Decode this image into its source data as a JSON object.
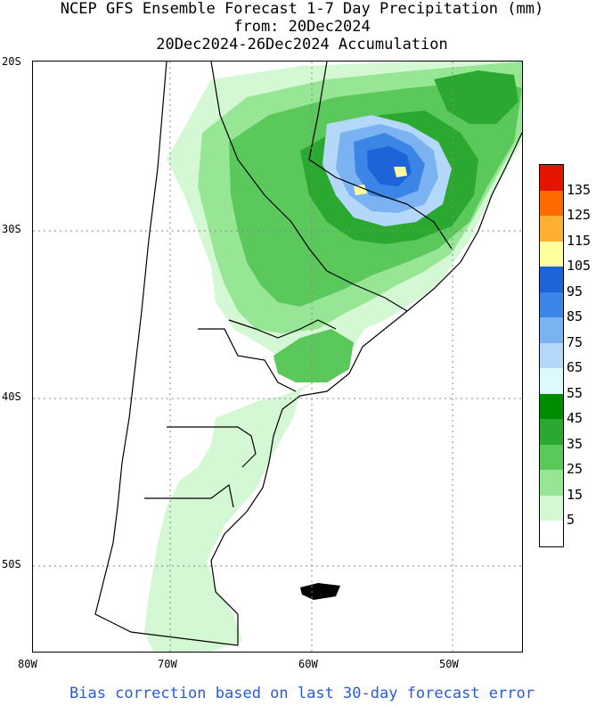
{
  "title": {
    "line1": "NCEP GFS Ensemble Forecast 1-7 Day Precipitation (mm)",
    "line2": "from: 20Dec2024",
    "line3": "20Dec2024-26Dec2024 Accumulation"
  },
  "lat_ticks": [
    "20S",
    "30S",
    "40S",
    "50S"
  ],
  "lon_ticks": [
    "80W",
    "70W",
    "60W",
    "50W"
  ],
  "legend": {
    "labels": [
      "135",
      "125",
      "115",
      "105",
      "95",
      "85",
      "75",
      "65",
      "55",
      "45",
      "35",
      "25",
      "15",
      "5"
    ],
    "colors": [
      "#e51400",
      "#ff6a00",
      "#ffb030",
      "#ffffa0",
      "#1e64d8",
      "#3c84e6",
      "#7ab2f2",
      "#b4d8fa",
      "#dcfafc",
      "#008c00",
      "#2aa830",
      "#5ac85a",
      "#96e696",
      "#d4f8d4",
      "#ffffff"
    ]
  },
  "footer": "Bias correction based on last 30-day forecast error"
}
